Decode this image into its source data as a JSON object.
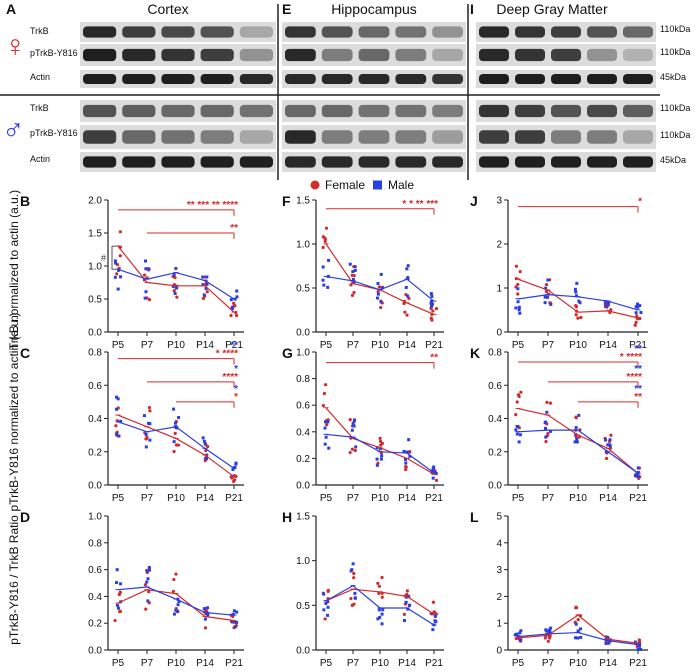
{
  "figure": {
    "blot_columns": [
      {
        "letter": "A",
        "title": "Cortex"
      },
      {
        "letter": "E",
        "title": "Hippocampus"
      },
      {
        "letter": "I",
        "title": "Deep Gray Matter"
      }
    ],
    "blot_rows": [
      {
        "sex": "female",
        "label": "TrkB",
        "size": "110kDa"
      },
      {
        "sex": "female",
        "label": "pTrkB-Y816",
        "size": "110kDa"
      },
      {
        "sex": "female",
        "label": "Actin",
        "size": "45kDa"
      },
      {
        "sex": "male",
        "label": "TrkB",
        "size": "110kDa"
      },
      {
        "sex": "male",
        "label": "pTrkB-Y816",
        "size": "110kDa"
      },
      {
        "sex": "male",
        "label": "Actin",
        "size": "45kDa"
      }
    ],
    "symbols": {
      "female": "♀",
      "male": "♂"
    },
    "colors": {
      "female": "#d42a2a",
      "male": "#2a3fe0",
      "axis": "#222222"
    },
    "legend": [
      {
        "series": "female",
        "label": "Female",
        "marker": "circle"
      },
      {
        "series": "male",
        "label": "Male",
        "marker": "square"
      }
    ],
    "ylabels": [
      "TrkB normalized to actin (a.u.)",
      "pTrkB-Y816 normalized to actin (a.u.)",
      "pTrkB-Y816 / TrkB Ratio"
    ]
  },
  "chart_data": [
    {
      "panel": "B",
      "type": "line",
      "row": 0,
      "col": 0,
      "categories": [
        "P5",
        "P7",
        "P10",
        "P14",
        "P21"
      ],
      "ylim": [
        0,
        2.0
      ],
      "yticks": [
        0.0,
        0.5,
        1.0,
        1.5,
        2.0
      ],
      "series": [
        {
          "name": "Female",
          "values": [
            1.3,
            0.75,
            0.7,
            0.7,
            0.3
          ]
        },
        {
          "name": "Male",
          "values": [
            0.95,
            0.8,
            0.9,
            0.78,
            0.5
          ]
        }
      ],
      "hash": "#",
      "annotations": [
        {
          "from": 0,
          "to": 4,
          "level": 1.85,
          "stars": "**  ***  **  ****",
          "color": "female"
        },
        {
          "from": 1,
          "to": 4,
          "level": 1.5,
          "stars": "**",
          "color": "female"
        }
      ]
    },
    {
      "panel": "F",
      "type": "line",
      "row": 0,
      "col": 1,
      "categories": [
        "P5",
        "P7",
        "P10",
        "P14",
        "P21"
      ],
      "ylim": [
        0,
        1.5
      ],
      "yticks": [
        0.0,
        0.5,
        1.0,
        1.5
      ],
      "series": [
        {
          "name": "Female",
          "values": [
            1.0,
            0.55,
            0.48,
            0.33,
            0.2
          ]
        },
        {
          "name": "Male",
          "values": [
            0.63,
            0.58,
            0.48,
            0.6,
            0.35
          ]
        }
      ],
      "annotations": [
        {
          "from": 0,
          "to": 4,
          "level": 1.4,
          "stars": "*  *  **  ***",
          "color": "female"
        }
      ]
    },
    {
      "panel": "J",
      "type": "line",
      "row": 0,
      "col": 2,
      "categories": [
        "P5",
        "P7",
        "P10",
        "P14",
        "P21"
      ],
      "ylim": [
        0,
        3
      ],
      "yticks": [
        0,
        1,
        2,
        3
      ],
      "series": [
        {
          "name": "Female",
          "values": [
            1.2,
            0.95,
            0.45,
            0.48,
            0.32
          ]
        },
        {
          "name": "Male",
          "values": [
            0.75,
            0.85,
            0.8,
            0.7,
            0.5
          ]
        }
      ],
      "annotations": [
        {
          "from": 0,
          "to": 4,
          "level": 2.85,
          "stars": "*",
          "color": "female"
        }
      ]
    },
    {
      "panel": "C",
      "type": "line",
      "row": 1,
      "col": 0,
      "categories": [
        "P5",
        "P7",
        "P10",
        "P14",
        "P21"
      ],
      "ylim": [
        0,
        0.8
      ],
      "yticks": [
        0.0,
        0.2,
        0.4,
        0.6,
        0.8
      ],
      "series": [
        {
          "name": "Female",
          "values": [
            0.42,
            0.35,
            0.28,
            0.18,
            0.05
          ]
        },
        {
          "name": "Male",
          "values": [
            0.38,
            0.32,
            0.35,
            0.22,
            0.1
          ]
        }
      ],
      "annotations": [
        {
          "from": 0,
          "to": 4,
          "level": 0.76,
          "stars": "*  ****",
          "color": "female",
          "extra": "**"
        },
        {
          "from": 1,
          "to": 4,
          "level": 0.62,
          "stars": "****",
          "color": "female",
          "extra": "*"
        },
        {
          "from": 2,
          "to": 4,
          "level": 0.5,
          "stars": "*",
          "color": "female",
          "extra": "*"
        }
      ]
    },
    {
      "panel": "G",
      "type": "line",
      "row": 1,
      "col": 1,
      "categories": [
        "P5",
        "P7",
        "P10",
        "P14",
        "P21"
      ],
      "ylim": [
        0,
        1.0
      ],
      "yticks": [
        0.0,
        0.2,
        0.4,
        0.6,
        0.8,
        1.0
      ],
      "series": [
        {
          "name": "Female",
          "values": [
            0.58,
            0.35,
            0.28,
            0.2,
            0.08
          ]
        },
        {
          "name": "Male",
          "values": [
            0.38,
            0.36,
            0.25,
            0.24,
            0.09
          ]
        }
      ],
      "annotations": [
        {
          "from": 0,
          "to": 4,
          "level": 0.92,
          "stars": "**",
          "color": "female"
        }
      ]
    },
    {
      "panel": "K",
      "type": "line",
      "row": 1,
      "col": 2,
      "categories": [
        "P5",
        "P7",
        "P10",
        "P14",
        "P21"
      ],
      "ylim": [
        0,
        0.8
      ],
      "yticks": [
        0.0,
        0.2,
        0.4,
        0.6,
        0.8
      ],
      "series": [
        {
          "name": "Female",
          "values": [
            0.46,
            0.42,
            0.3,
            0.22,
            0.07
          ]
        },
        {
          "name": "Male",
          "values": [
            0.32,
            0.33,
            0.33,
            0.2,
            0.07
          ]
        }
      ],
      "annotations": [
        {
          "from": 0,
          "to": 4,
          "level": 0.74,
          "stars": "*  ****",
          "color": "female",
          "extra": "**"
        },
        {
          "from": 1,
          "to": 4,
          "level": 0.62,
          "stars": "****",
          "color": "female",
          "extra": "**"
        },
        {
          "from": 2,
          "to": 4,
          "level": 0.5,
          "stars": "**",
          "color": "female",
          "extra": "**"
        }
      ]
    },
    {
      "panel": "D",
      "type": "line",
      "row": 2,
      "col": 0,
      "categories": [
        "P5",
        "P7",
        "P10",
        "P14",
        "P21"
      ],
      "ylim": [
        0,
        1.0
      ],
      "yticks": [
        0.0,
        0.2,
        0.4,
        0.6,
        0.8,
        1.0
      ],
      "series": [
        {
          "name": "Female",
          "values": [
            0.35,
            0.45,
            0.42,
            0.25,
            0.22
          ]
        },
        {
          "name": "Male",
          "values": [
            0.45,
            0.47,
            0.38,
            0.28,
            0.26
          ]
        }
      ]
    },
    {
      "panel": "H",
      "type": "line",
      "row": 2,
      "col": 1,
      "categories": [
        "P5",
        "P7",
        "P10",
        "P14",
        "P21"
      ],
      "ylim": [
        0,
        1.5
      ],
      "yticks": [
        0.0,
        0.5,
        1.0,
        1.5
      ],
      "series": [
        {
          "name": "Female",
          "values": [
            0.55,
            0.68,
            0.65,
            0.6,
            0.4
          ]
        },
        {
          "name": "Male",
          "values": [
            0.55,
            0.72,
            0.47,
            0.47,
            0.28
          ]
        }
      ]
    },
    {
      "panel": "L",
      "type": "line",
      "row": 2,
      "col": 2,
      "categories": [
        "P5",
        "P7",
        "P10",
        "P14",
        "P21"
      ],
      "ylim": [
        0,
        5
      ],
      "yticks": [
        0,
        1,
        2,
        3,
        4,
        5
      ],
      "series": [
        {
          "name": "Female",
          "values": [
            0.45,
            0.55,
            1.3,
            0.4,
            0.25
          ]
        },
        {
          "name": "Male",
          "values": [
            0.5,
            0.6,
            0.65,
            0.35,
            0.2
          ]
        }
      ]
    }
  ]
}
